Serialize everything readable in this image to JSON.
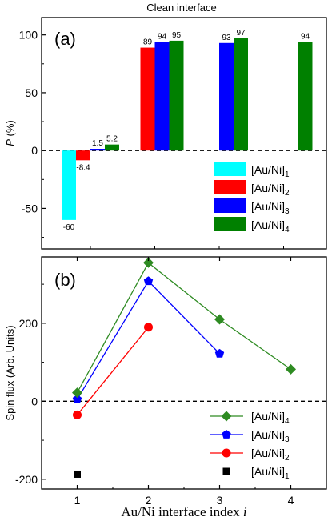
{
  "figure_title": "Clean interface",
  "chart_data": [
    {
      "type": "bar",
      "panel_label": "(a)",
      "ylabel": "P (%)",
      "ylabel_italic": "P",
      "ylabel_rest": " (%)",
      "ylim": [
        -85,
        115
      ],
      "yticks": [
        -50,
        0,
        50,
        100
      ],
      "categories": [
        "1",
        "2",
        "3",
        "4"
      ],
      "zero_line": "dashed",
      "legend_position": "bottom-right",
      "series": [
        {
          "name": "[Au/Ni]1",
          "base": "[Au/Ni]",
          "sub": "1",
          "color": "#00FFFF",
          "values": [
            -60,
            null,
            null,
            null
          ],
          "labels": [
            "-60",
            null,
            null,
            null
          ]
        },
        {
          "name": "[Au/Ni]2",
          "base": "[Au/Ni]",
          "sub": "2",
          "color": "#FF0000",
          "values": [
            -8.4,
            89,
            null,
            null
          ],
          "labels": [
            "-8.4",
            "89",
            null,
            null
          ]
        },
        {
          "name": "[Au/Ni]3",
          "base": "[Au/Ni]",
          "sub": "3",
          "color": "#0000FF",
          "values": [
            1.5,
            94,
            93,
            null
          ],
          "labels": [
            "1.5",
            "94",
            "93",
            null
          ]
        },
        {
          "name": "[Au/Ni]4",
          "base": "[Au/Ni]",
          "sub": "4",
          "color": "#008000",
          "values": [
            5.2,
            95,
            97,
            94
          ],
          "labels": [
            "5.2",
            "95",
            "97",
            "94"
          ]
        }
      ]
    },
    {
      "type": "line",
      "panel_label": "(b)",
      "ylabel": "Spin flux (Arb. Units)",
      "xlabel": "Au/Ni interface index i",
      "xlabel_main": "Au/Ni interface index ",
      "xlabel_italic": "i",
      "xlim": [
        0.5,
        4.5
      ],
      "ylim": [
        -225,
        370
      ],
      "yticks": [
        -200,
        0,
        200
      ],
      "xticks": [
        1,
        2,
        3,
        4
      ],
      "zero_line": "dashed",
      "legend_position": "bottom-right",
      "series": [
        {
          "name": "[Au/Ni]4",
          "base": "[Au/Ni]",
          "sub": "4",
          "color": "#2E8B22",
          "marker": "diamond",
          "x": [
            1,
            2,
            3,
            4
          ],
          "y": [
            22,
            355,
            210,
            82
          ]
        },
        {
          "name": "[Au/Ni]3",
          "base": "[Au/Ni]",
          "sub": "3",
          "color": "#0000FF",
          "marker": "pentagon",
          "x": [
            1,
            2,
            3
          ],
          "y": [
            5,
            308,
            122
          ]
        },
        {
          "name": "[Au/Ni]2",
          "base": "[Au/Ni]",
          "sub": "2",
          "color": "#FF0000",
          "marker": "circle",
          "x": [
            1,
            2
          ],
          "y": [
            -35,
            190
          ]
        },
        {
          "name": "[Au/Ni]1",
          "base": "[Au/Ni]",
          "sub": "1",
          "color": "#000000",
          "marker": "square",
          "x": [
            1
          ],
          "y": [
            -187
          ]
        }
      ]
    }
  ]
}
